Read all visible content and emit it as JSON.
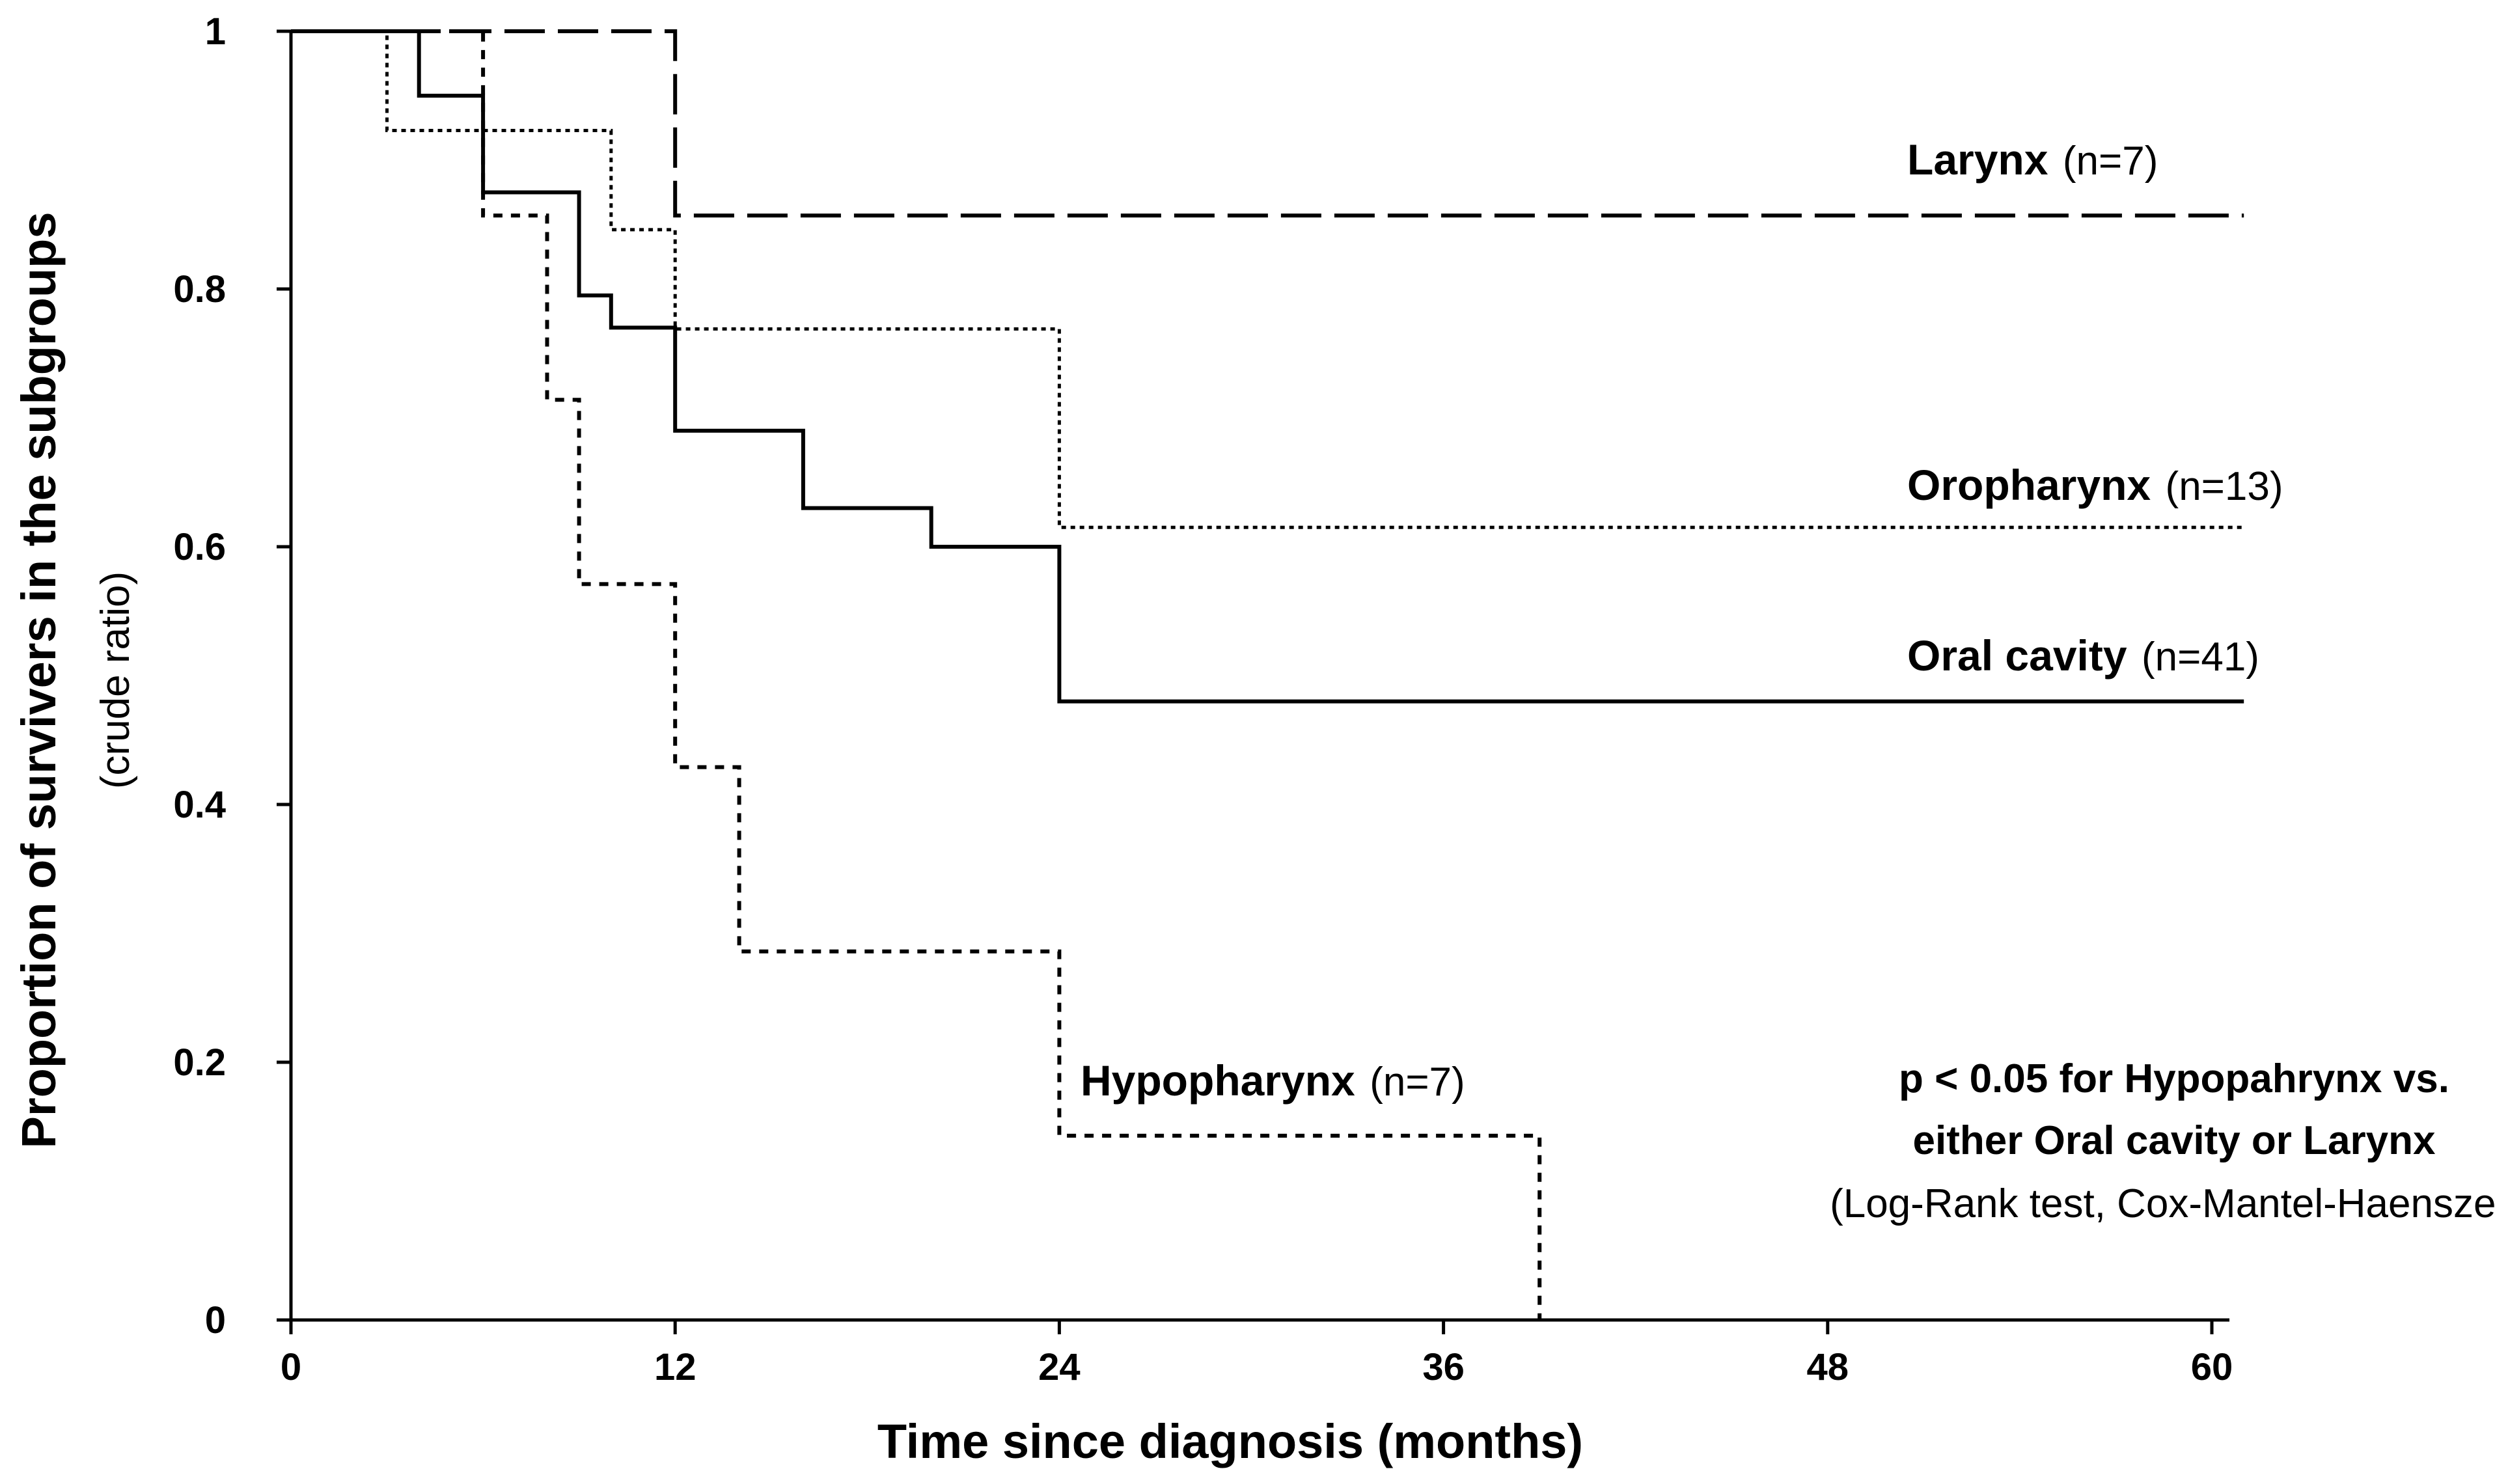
{
  "chart_data": {
    "type": "line",
    "subtype": "kaplan-meier step curves",
    "xlabel": "Time since diagnosis (months)",
    "ylabel": "Proportion of survivers in the subgroups",
    "ylabel_sub": "(crude ratio)",
    "xlim": [
      0,
      61
    ],
    "ylim": [
      0,
      1
    ],
    "xticks": [
      0,
      12,
      24,
      36,
      48,
      60
    ],
    "yticks": [
      0,
      0.2,
      0.4,
      0.6,
      0.8,
      1
    ],
    "ytick_labels": [
      "0",
      "0.2",
      "0.4",
      "0.6",
      "0.8",
      "1"
    ],
    "series": [
      {
        "name": "Larynx",
        "n_label": "(n=7)",
        "style": "long-dash",
        "points": [
          [
            0,
            1
          ],
          [
            12,
            1
          ],
          [
            12,
            0.857
          ],
          [
            61,
            0.857
          ]
        ]
      },
      {
        "name": "Oropharynx",
        "n_label": "(n=13)",
        "style": "fine-dotted",
        "points": [
          [
            0,
            1
          ],
          [
            3,
            1
          ],
          [
            3,
            0.923
          ],
          [
            10,
            0.923
          ],
          [
            10,
            0.846
          ],
          [
            12,
            0.846
          ],
          [
            12,
            0.769
          ],
          [
            24,
            0.769
          ],
          [
            24,
            0.615
          ],
          [
            61,
            0.615
          ]
        ]
      },
      {
        "name": "Oral cavity",
        "n_label": "(n=41)",
        "style": "solid",
        "points": [
          [
            0,
            1
          ],
          [
            4,
            1
          ],
          [
            4,
            0.95
          ],
          [
            6,
            0.95
          ],
          [
            6,
            0.875
          ],
          [
            9,
            0.875
          ],
          [
            9,
            0.795
          ],
          [
            10,
            0.795
          ],
          [
            10,
            0.77
          ],
          [
            12,
            0.77
          ],
          [
            12,
            0.69
          ],
          [
            16,
            0.69
          ],
          [
            16,
            0.63
          ],
          [
            20,
            0.63
          ],
          [
            20,
            0.6
          ],
          [
            24,
            0.6
          ],
          [
            24,
            0.48
          ],
          [
            61,
            0.48
          ]
        ]
      },
      {
        "name": "Hypopharynx",
        "n_label": "(n=7)",
        "style": "dotted",
        "points": [
          [
            0,
            1
          ],
          [
            6,
            1
          ],
          [
            6,
            0.857
          ],
          [
            8,
            0.857
          ],
          [
            8,
            0.714
          ],
          [
            9,
            0.714
          ],
          [
            9,
            0.571
          ],
          [
            12,
            0.571
          ],
          [
            12,
            0.429
          ],
          [
            14,
            0.429
          ],
          [
            14,
            0.286
          ],
          [
            24,
            0.286
          ],
          [
            24,
            0.143
          ],
          [
            39,
            0.143
          ],
          [
            39,
            0
          ]
        ]
      }
    ],
    "annotation": {
      "line1": "p < 0.05 for Hypopahrynx vs.",
      "line2": "either Oral cavity or Larynx",
      "line3": "(Log-Rank test, Cox-Mantel-Haenszel)"
    }
  }
}
